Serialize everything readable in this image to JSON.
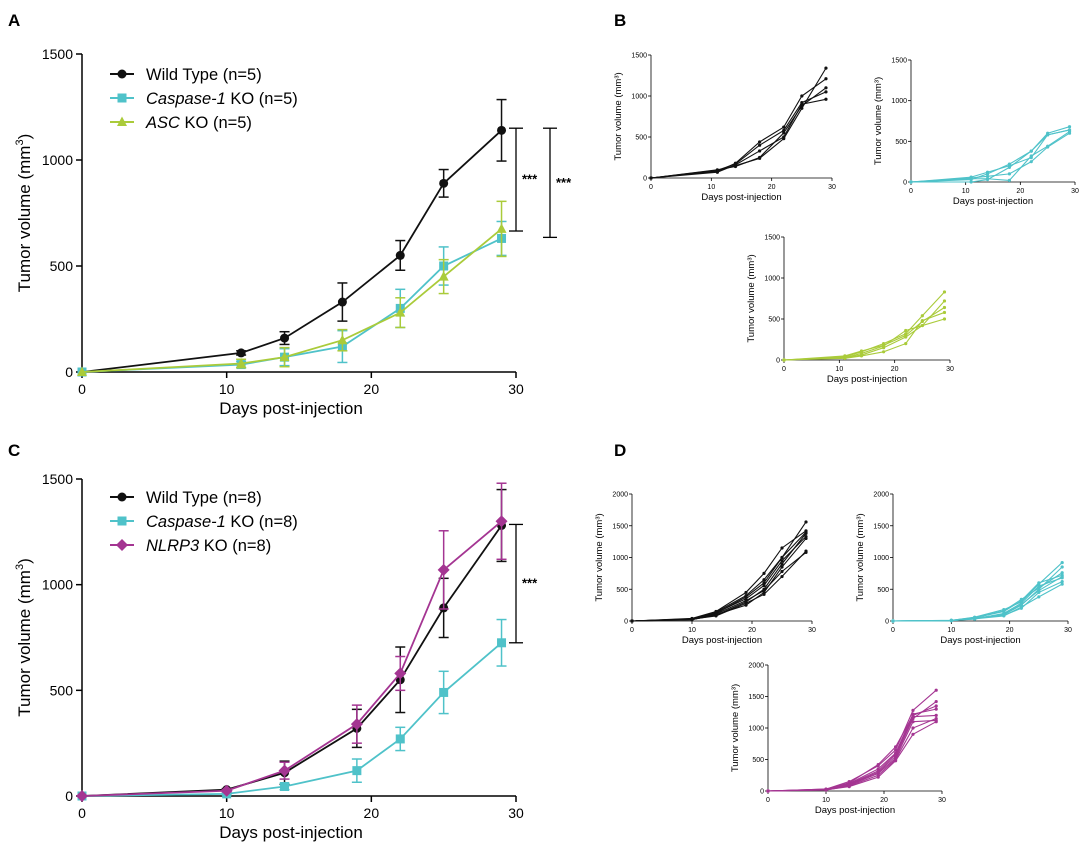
{
  "colors": {
    "black": "#111111",
    "teal": "#4fc2c9",
    "green": "#aacb3a",
    "magenta": "#a43592"
  },
  "chart_data": [
    {
      "id": "A",
      "panel_label": "A",
      "type": "line",
      "xlabel": "Days post-injection",
      "ylabel_main": "Tumor volume (mm",
      "ylabel_sup": "3",
      "ylabel_close": ")",
      "xlim": [
        0,
        30
      ],
      "ylim": [
        0,
        1500
      ],
      "xticks": [
        0,
        10,
        20,
        30
      ],
      "yticks": [
        0,
        500,
        1000,
        1500
      ],
      "legend_position": "top-left",
      "series": [
        {
          "name": "Wild Type",
          "name_italic": "",
          "suffix": "Wild Type (n=5)",
          "color_key": "black",
          "marker": "circle",
          "x": [
            0,
            11,
            14,
            18,
            22,
            25,
            29
          ],
          "y": [
            0,
            90,
            160,
            330,
            550,
            890,
            1140
          ],
          "err": [
            0,
            10,
            30,
            90,
            70,
            65,
            145
          ]
        },
        {
          "name": "Caspase-1 KO",
          "name_italic": "Caspase-1",
          "suffix": " KO (n=5)",
          "color_key": "teal",
          "marker": "square",
          "x": [
            0,
            11,
            14,
            18,
            22,
            25,
            29
          ],
          "y": [
            0,
            35,
            70,
            120,
            300,
            500,
            630
          ],
          "err": [
            0,
            15,
            40,
            75,
            90,
            90,
            80
          ]
        },
        {
          "name": "ASC KO",
          "name_italic": "ASC",
          "suffix": " KO (n=5)",
          "color_key": "green",
          "marker": "triangle",
          "x": [
            0,
            11,
            14,
            18,
            22,
            25,
            29
          ],
          "y": [
            0,
            40,
            70,
            150,
            280,
            450,
            675
          ],
          "err": [
            0,
            20,
            45,
            50,
            70,
            80,
            130
          ]
        }
      ],
      "significance": [
        {
          "label": "***",
          "from": 665,
          "to": 1150
        },
        {
          "label": "***",
          "from": 635,
          "to": 1150
        }
      ]
    },
    {
      "id": "B",
      "panel_label": "B",
      "type": "line",
      "xlabel": "Days post-injection",
      "ylabel": "Tumor volume (mm³)",
      "xlim": [
        0,
        30
      ],
      "ylim": [
        0,
        1500
      ],
      "xticks": [
        0,
        10,
        20,
        30
      ],
      "yticks": [
        0,
        500,
        1000,
        1500
      ],
      "subplots": [
        {
          "name": "Wild Type individual",
          "color_key": "black",
          "x": [
            0,
            11,
            14,
            18,
            22,
            25,
            29
          ],
          "series": [
            [
              0,
              90,
              150,
              240,
              480,
              850,
              1340
            ],
            [
              0,
              80,
              180,
              440,
              620,
              1000,
              1210
            ],
            [
              0,
              100,
              140,
              250,
              550,
              880,
              1100
            ],
            [
              0,
              70,
              160,
              330,
              500,
              900,
              960
            ],
            [
              0,
              95,
              170,
              400,
              580,
              920,
              1050
            ]
          ]
        },
        {
          "name": "Caspase-1 KO individual",
          "color_key": "teal",
          "x": [
            0,
            11,
            14,
            18,
            22,
            25,
            29
          ],
          "series": [
            [
              0,
              0,
              30,
              180,
              380,
              600,
              680
            ],
            [
              0,
              60,
              120,
              200,
              300,
              580,
              640
            ],
            [
              0,
              50,
              70,
              100,
              250,
              430,
              600
            ],
            [
              0,
              40,
              40,
              20,
              320,
              440,
              620
            ],
            [
              0,
              30,
              100,
              220,
              380,
              580,
              640
            ]
          ]
        },
        {
          "name": "ASC KO individual",
          "color_key": "green",
          "x": [
            0,
            11,
            14,
            18,
            22,
            25,
            29
          ],
          "series": [
            [
              0,
              40,
              100,
              200,
              320,
              540,
              830
            ],
            [
              0,
              30,
              60,
              150,
              280,
              420,
              720
            ],
            [
              0,
              50,
              110,
              180,
              300,
              470,
              640
            ],
            [
              0,
              20,
              50,
              100,
              200,
              480,
              580
            ],
            [
              0,
              30,
              80,
              170,
              360,
              420,
              500
            ]
          ]
        }
      ]
    },
    {
      "id": "C",
      "panel_label": "C",
      "type": "line",
      "xlabel": "Days post-injection",
      "ylabel_main": "Tumor volume (mm",
      "ylabel_sup": "3",
      "ylabel_close": ")",
      "xlim": [
        0,
        30
      ],
      "ylim": [
        0,
        1500
      ],
      "xticks": [
        0,
        10,
        20,
        30
      ],
      "yticks": [
        0,
        500,
        1000,
        1500
      ],
      "legend_position": "top-left",
      "series": [
        {
          "name": "Wild Type",
          "name_italic": "",
          "suffix": "Wild Type (n=8)",
          "color_key": "black",
          "marker": "circle",
          "x": [
            0,
            10,
            14,
            19,
            22,
            25,
            29
          ],
          "y": [
            0,
            30,
            110,
            320,
            550,
            890,
            1280
          ],
          "err": [
            0,
            5,
            55,
            90,
            155,
            140,
            170
          ]
        },
        {
          "name": "Caspase-1 KO",
          "name_italic": "Caspase-1",
          "suffix": " KO (n=8)",
          "color_key": "teal",
          "marker": "square",
          "x": [
            0,
            10,
            14,
            19,
            22,
            25,
            29
          ],
          "y": [
            0,
            10,
            45,
            120,
            270,
            490,
            725
          ],
          "err": [
            0,
            5,
            15,
            55,
            55,
            100,
            110
          ]
        },
        {
          "name": "NLRP3 KO",
          "name_italic": "NLRP3",
          "suffix": " KO (n=8)",
          "color_key": "magenta",
          "marker": "diamond",
          "x": [
            0,
            10,
            14,
            19,
            22,
            25,
            29
          ],
          "y": [
            0,
            25,
            120,
            340,
            580,
            1070,
            1300
          ],
          "err": [
            0,
            5,
            40,
            90,
            80,
            185,
            180
          ]
        }
      ],
      "significance": [
        {
          "label": "***",
          "from": 725,
          "to": 1285
        }
      ]
    },
    {
      "id": "D",
      "panel_label": "D",
      "type": "line",
      "xlabel": "Days post-injection",
      "ylabel": "Tumor volume (mm³)",
      "xlim": [
        0,
        30
      ],
      "ylim": [
        0,
        2000
      ],
      "xticks": [
        0,
        10,
        20,
        30
      ],
      "yticks": [
        0,
        500,
        1000,
        1500,
        2000
      ],
      "subplots": [
        {
          "name": "Wild Type individual",
          "color_key": "black",
          "x": [
            0,
            10,
            14,
            19,
            22,
            25,
            29
          ],
          "series": [
            [
              0,
              30,
              120,
              380,
              600,
              1000,
              1560
            ],
            [
              0,
              40,
              150,
              450,
              750,
              1150,
              1420
            ],
            [
              0,
              25,
              90,
              300,
              500,
              900,
              1380
            ],
            [
              0,
              20,
              100,
              250,
              450,
              850,
              1300
            ],
            [
              0,
              35,
              130,
              350,
              560,
              950,
              1330
            ],
            [
              0,
              30,
              80,
              280,
              420,
              700,
              1100
            ],
            [
              0,
              20,
              110,
              320,
              480,
              780,
              1080
            ],
            [
              0,
              25,
              140,
              400,
              650,
              1000,
              1400
            ]
          ]
        },
        {
          "name": "Caspase-1 KO individual",
          "color_key": "teal",
          "x": [
            0,
            10,
            14,
            19,
            22,
            25,
            29
          ],
          "series": [
            [
              0,
              10,
              60,
              180,
              300,
              580,
              920
            ],
            [
              0,
              5,
              40,
              100,
              250,
              500,
              850
            ],
            [
              0,
              10,
              50,
              150,
              320,
              600,
              720
            ],
            [
              0,
              8,
              30,
              120,
              280,
              550,
              680
            ],
            [
              0,
              5,
              45,
              90,
              200,
              450,
              620
            ],
            [
              0,
              12,
              55,
              160,
              340,
              520,
              760
            ],
            [
              0,
              6,
              35,
              80,
              220,
              380,
              580
            ],
            [
              0,
              9,
              40,
              110,
              260,
              480,
              700
            ]
          ]
        },
        {
          "name": "NLRP3 KO individual",
          "color_key": "magenta",
          "x": [
            0,
            10,
            14,
            19,
            22,
            25,
            29
          ],
          "series": [
            [
              0,
              30,
              150,
              400,
              650,
              1280,
              1600
            ],
            [
              0,
              20,
              100,
              300,
              550,
              1150,
              1420
            ],
            [
              0,
              25,
              120,
              350,
              600,
              1220,
              1300
            ],
            [
              0,
              15,
              80,
              250,
              500,
              1000,
              1150
            ],
            [
              0,
              30,
              130,
              420,
              700,
              1200,
              1350
            ],
            [
              0,
              20,
              90,
              280,
              520,
              1100,
              1120
            ],
            [
              0,
              25,
              110,
              320,
              580,
              1180,
              1200
            ],
            [
              0,
              18,
              70,
              220,
              480,
              900,
              1100
            ]
          ]
        }
      ]
    }
  ]
}
